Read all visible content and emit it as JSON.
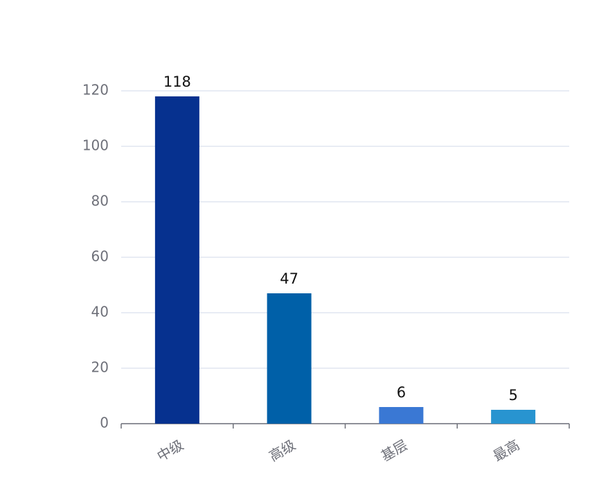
{
  "chart_data": {
    "type": "bar",
    "categories": [
      "中级",
      "高级",
      "基层",
      "最高"
    ],
    "values": [
      118,
      47,
      6,
      5
    ],
    "colors": [
      "#06318f",
      "#0060a8",
      "#3a78d4",
      "#2894d0"
    ],
    "ylim": [
      0,
      120
    ],
    "yticks": [
      0,
      20,
      40,
      60,
      80,
      100,
      120
    ],
    "grid": true
  }
}
